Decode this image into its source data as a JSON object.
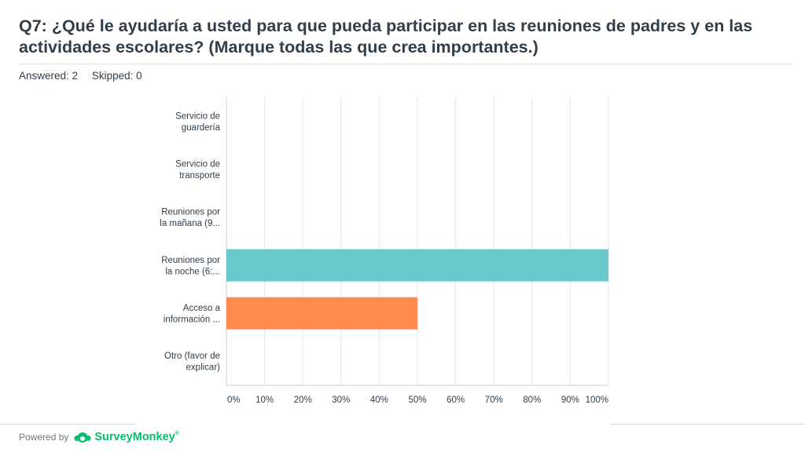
{
  "question": {
    "title": "Q7: ¿Qué le ayudaría a usted para que pueda participar en las reuniones de padres y en las actividades escolares? (Marque todas las que crea importantes.)",
    "answered": "Answered: 2",
    "skipped": "Skipped: 0"
  },
  "footer": {
    "powered_by": "Powered by",
    "brand": "SurveyMonkey",
    "brand_icon": "surveymonkey-logo-icon",
    "trademark": "®"
  },
  "chart_data": {
    "type": "bar",
    "orientation": "horizontal",
    "categories": [
      [
        "Servicio de",
        "guardería"
      ],
      [
        "Servicio de",
        "transporte"
      ],
      [
        "Reuniones por",
        "la mañana (9..."
      ],
      [
        "Reuniones por",
        "la noche (6:..."
      ],
      [
        "Acceso a",
        "información ..."
      ],
      [
        "Otro (favor de",
        "explicar)"
      ]
    ],
    "values": [
      0,
      0,
      0,
      100,
      50,
      0
    ],
    "bar_colors": [
      "#6bc8cd",
      "#6bc8cd",
      "#6bc8cd",
      "#6bc8cd",
      "#ff8b4f",
      "#6bc8cd"
    ],
    "xlim": [
      0,
      100
    ],
    "xticks": [
      "0%",
      "10%",
      "20%",
      "30%",
      "40%",
      "50%",
      "60%",
      "70%",
      "80%",
      "90%",
      "100%"
    ],
    "grid": true,
    "title": "",
    "xlabel": "",
    "ylabel": ""
  }
}
